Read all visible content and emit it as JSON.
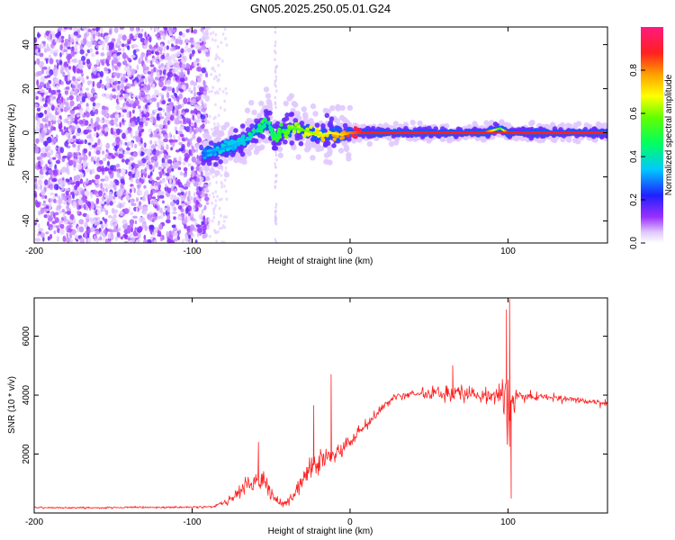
{
  "title": "GN05.2025.250.05.01.G24",
  "chart_data": [
    {
      "type": "heatmap",
      "xlabel": "Height of straight line (km)",
      "ylabel": "Frequency (Hz)",
      "xlim": [
        -200,
        163
      ],
      "ylim": [
        -50,
        48
      ],
      "x_ticks": [
        -200,
        -100,
        0,
        100
      ],
      "y_ticks": [
        -40,
        -20,
        0,
        20,
        40
      ],
      "colorbar": {
        "label": "Normalized spectral amplitude",
        "ticks": [
          0.0,
          0.2,
          0.4,
          0.6,
          0.8
        ],
        "range": [
          0,
          1
        ]
      },
      "noise_region_x": [
        -200,
        -90
      ],
      "faint_streak_x": -47,
      "ridge": {
        "x": [
          -93,
          -85,
          -75,
          -65,
          -58,
          -52,
          -48,
          -42,
          -35,
          -28,
          -20,
          -12,
          -5,
          0,
          10,
          50,
          85,
          95,
          100,
          163
        ],
        "frequency": [
          -10,
          -8,
          -6,
          -3,
          2,
          5,
          -2,
          1,
          2,
          1,
          -1,
          0,
          -1,
          0,
          0,
          0,
          0,
          2,
          0,
          0
        ],
        "amplitude": [
          0.3,
          0.35,
          0.35,
          0.4,
          0.45,
          0.45,
          0.5,
          0.55,
          0.6,
          0.65,
          0.7,
          0.75,
          0.8,
          0.9,
          1.0,
          1.0,
          1.0,
          0.6,
          1.0,
          1.0
        ]
      }
    },
    {
      "type": "line",
      "xlabel": "Height of straight line (km)",
      "ylabel": "SNR (10 * v/v)",
      "xlim": [
        -200,
        163
      ],
      "ylim": [
        0,
        7300
      ],
      "x_ticks": [
        -200,
        -100,
        0,
        100
      ],
      "y_ticks": [
        2000,
        4000,
        6000
      ],
      "color": "#ff2020",
      "envelope": {
        "x": [
          -200,
          -160,
          -120,
          -95,
          -85,
          -78,
          -70,
          -62,
          -55,
          -50,
          -45,
          -40,
          -35,
          -30,
          -25,
          -20,
          -15,
          -10,
          -5,
          0,
          5,
          10,
          15,
          20,
          25,
          30,
          40,
          60,
          80,
          95,
          100,
          105,
          120,
          140,
          163
        ],
        "mean": [
          180,
          180,
          190,
          200,
          230,
          400,
          700,
          1000,
          1100,
          700,
          350,
          300,
          700,
          1100,
          1500,
          1700,
          2000,
          1900,
          2200,
          2400,
          2700,
          2950,
          3250,
          3550,
          3800,
          3950,
          4050,
          4050,
          4050,
          4000,
          3500,
          4000,
          3950,
          3850,
          3700
        ],
        "spread": [
          60,
          60,
          60,
          60,
          80,
          300,
          450,
          600,
          800,
          500,
          250,
          250,
          500,
          700,
          800,
          700,
          700,
          600,
          500,
          500,
          450,
          400,
          350,
          300,
          250,
          250,
          300,
          450,
          450,
          600,
          3000,
          300,
          200,
          200,
          200
        ]
      },
      "spikes": [
        {
          "x": -58,
          "y": 2400
        },
        {
          "x": -23,
          "y": 3650
        },
        {
          "x": -12,
          "y": 4700
        },
        {
          "x": 65,
          "y": 5000
        },
        {
          "x": 99,
          "y": 6900
        },
        {
          "x": 101,
          "y": 7250
        },
        {
          "x": 102,
          "y": 500
        }
      ]
    }
  ]
}
